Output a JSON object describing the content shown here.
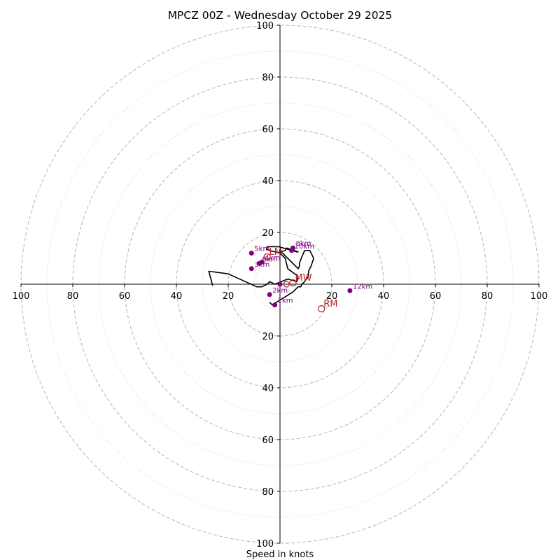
{
  "chart_data": {
    "type": "scatter",
    "title": "MPCZ 00Z - Wednesday October 29 2025",
    "xlabel": "Speed in knots",
    "ylabel": "",
    "xlim": [
      -100,
      100
    ],
    "ylim": [
      -100,
      100
    ],
    "ring_major": [
      20,
      40,
      60,
      80,
      100
    ],
    "ring_minor": [
      10,
      30,
      50,
      70,
      90
    ],
    "tick_values": [
      20,
      40,
      60,
      80,
      100
    ],
    "hodograph": {
      "x": [
        -4,
        -3,
        5,
        6,
        7,
        8,
        8.5,
        9.5,
        11,
        11,
        12,
        13,
        11.5,
        9.5,
        8,
        7.5,
        7.5,
        7,
        3,
        1,
        0,
        2,
        2.5,
        7,
        6.5,
        -0.5,
        -2,
        -5,
        -5,
        -4,
        0,
        2,
        3,
        7,
        6.5,
        3,
        -2,
        -4,
        -5,
        -7,
        -9,
        -20,
        -27.5,
        -26
      ],
      "y": [
        -7,
        -8,
        -3,
        -2,
        -1,
        -1,
        0,
        1,
        3,
        5,
        7,
        10,
        13,
        13,
        9.5,
        8,
        7,
        6,
        10,
        12,
        12.5,
        13,
        14,
        12.5,
        12.5,
        14.5,
        14.5,
        14.5,
        13.5,
        13,
        12,
        10,
        6,
        3,
        1,
        2,
        0,
        1,
        0,
        -1,
        -1,
        4,
        5,
        -0.5
      ]
    },
    "height_points": [
      {
        "label": "1km",
        "x": -2,
        "y": -8
      },
      {
        "label": "2km",
        "x": -4,
        "y": -4
      },
      {
        "label": "3km",
        "x": -11,
        "y": 6
      },
      {
        "label": "4km",
        "x": -7,
        "y": 8.5
      },
      {
        "label": "5km",
        "x": -11,
        "y": 12
      },
      {
        "label": "6km",
        "x": -8,
        "y": 8
      },
      {
        "label": "8km",
        "x": 5,
        "y": 14
      },
      {
        "label": "10km",
        "x": 4.5,
        "y": 13
      },
      {
        "label": "12km",
        "x": 27,
        "y": -2.5
      },
      {
        "label": "",
        "x": 0,
        "y": 0
      }
    ],
    "storm_motion": [
      {
        "label": "RM",
        "x": 16,
        "y": -9.5
      },
      {
        "label": "LM",
        "x": -5,
        "y": 10.5
      },
      {
        "label": "MW",
        "x": 5,
        "y": 0.5
      }
    ],
    "extra_markers": [
      {
        "label": "",
        "x": 2.5,
        "y": 0
      }
    ],
    "colors": {
      "trace": "#000000",
      "height_points": "#800080",
      "storm_motion": "#b22222",
      "rings": "#bbbbbb"
    }
  }
}
